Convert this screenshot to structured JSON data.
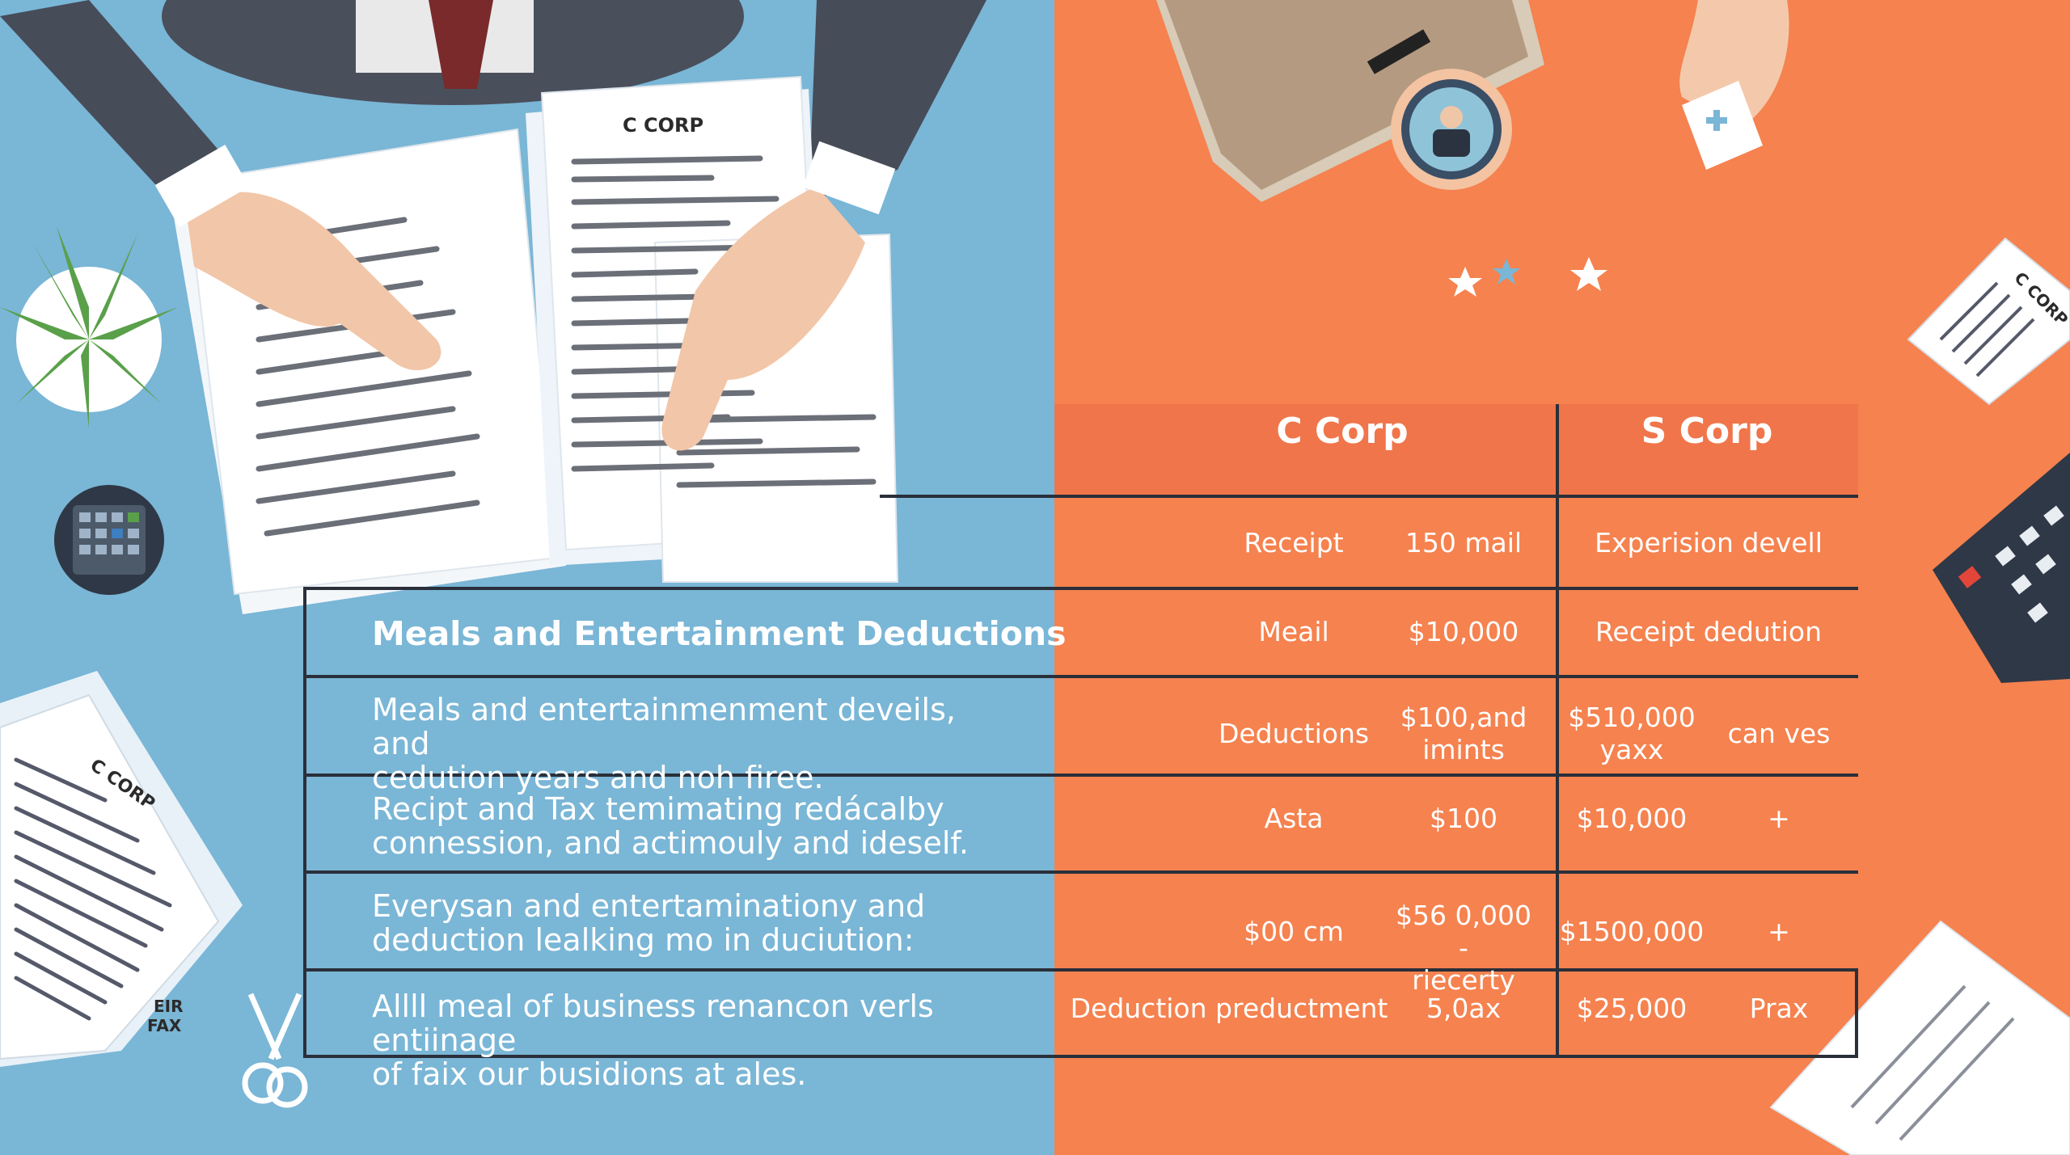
{
  "colors": {
    "left_background": "#7ab6d6",
    "right_background": "#f5824f",
    "grid_lines": "#2a2f3a",
    "text": "#ffffff"
  },
  "illustration": {
    "document_top_label": "C CORP",
    "document_left_label": "C CORP",
    "document_right_label": "C CORP",
    "form_labels": [
      "EIR",
      "FAX"
    ],
    "icons": [
      "plant-icon",
      "calculator-icon",
      "scissors-icon",
      "avatar-icon",
      "star-icon",
      "calculator-icon"
    ]
  },
  "table": {
    "headers": {
      "c_corp": "C Corp",
      "s_corp": "S Corp"
    },
    "left_title": "Meals and Entertainment Deductions",
    "left_rows": [
      {
        "line1": "Meals and entertainmenment deveils, and",
        "line2": "cedution years and noh firee."
      },
      {
        "line1": "Recipt and Tax temimating redácalby",
        "line2": "connession, and actimouly and ideself."
      },
      {
        "line1": "Everysan and entertaminationy and",
        "line2": "deduction lealking mo in duciution:"
      },
      {
        "line1": "Allll meal of business renancon verls entiinage",
        "line2": "of faix our busidions at ales."
      }
    ],
    "right_rows": [
      {
        "c_label": "Receipt",
        "c_value": "150 mail",
        "s_label": "Experision devell",
        "s_value": ""
      },
      {
        "c_label": "Meail",
        "c_value": "$10,000",
        "s_label": "Receipt dedution",
        "s_value": ""
      },
      {
        "c_label": "Deductions",
        "c_value": "$100,and\nimints",
        "s_label": "$510,000\nyaxx",
        "s_value": "can ves"
      },
      {
        "c_label": "Asta",
        "c_value": "$100",
        "s_label": "$10,000",
        "s_value": "+"
      },
      {
        "c_label": "$00 cm",
        "c_value": "$56 0,000 -\nriecerty",
        "s_label": "$1500,000",
        "s_value": "+"
      },
      {
        "c_label": "Deduction preductment",
        "c_value": "5,0ax",
        "s_label": "$25,000",
        "s_value": "Prax"
      }
    ]
  }
}
